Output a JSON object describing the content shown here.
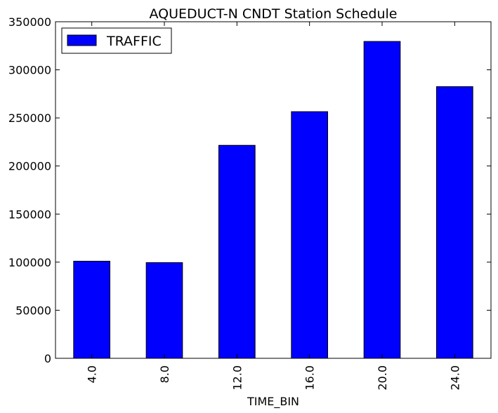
{
  "chart_data": {
    "type": "bar",
    "title": "AQUEDUCT-N CNDT Station Schedule",
    "xlabel": "TIME_BIN",
    "ylabel": "",
    "categories": [
      "4.0",
      "8.0",
      "12.0",
      "16.0",
      "20.0",
      "24.0"
    ],
    "series": [
      {
        "name": "TRAFFIC",
        "values": [
          101000,
          99500,
          221500,
          256500,
          329500,
          282500
        ],
        "color": "#0000ff"
      }
    ],
    "ylim": [
      0,
      350000
    ],
    "yticks": [
      0,
      50000,
      100000,
      150000,
      200000,
      250000,
      300000,
      350000
    ],
    "ytick_labels": [
      "0",
      "50000",
      "100000",
      "150000",
      "200000",
      "250000",
      "300000",
      "350000"
    ],
    "grid": false,
    "legend_position": "top-left"
  }
}
